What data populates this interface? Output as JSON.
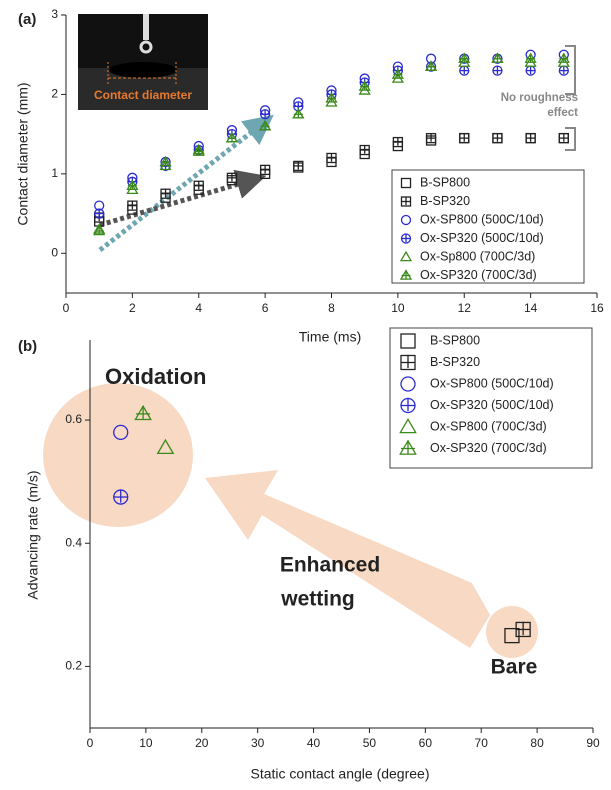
{
  "chart_data": [
    {
      "type": "scatter",
      "panel_label": "(a)",
      "x_label": "Time (ms)",
      "y_label": "Contact diameter (mm)",
      "xlim": [
        0,
        16
      ],
      "xticks": [
        0,
        2,
        4,
        6,
        8,
        10,
        12,
        14,
        16
      ],
      "ylim": [
        -0.5,
        3
      ],
      "yticks": [
        0,
        1,
        2,
        3
      ],
      "inset_label": "Contact diameter",
      "annotation": [
        "No roughness",
        "effect"
      ],
      "x": [
        1,
        2,
        3,
        4,
        5,
        6,
        7,
        8,
        9,
        10,
        11,
        12,
        13,
        14,
        15
      ],
      "series": [
        {
          "name": "B-SP800",
          "color": "#222222",
          "marker": "square",
          "values": [
            0.4,
            0.55,
            0.7,
            0.8,
            0.92,
            1.0,
            1.08,
            1.15,
            1.25,
            1.35,
            1.42,
            1.45,
            1.45,
            1.45,
            1.45
          ]
        },
        {
          "name": "B-SP320",
          "color": "#222222",
          "marker": "square-plus",
          "values": [
            0.45,
            0.6,
            0.75,
            0.85,
            0.95,
            1.05,
            1.1,
            1.2,
            1.3,
            1.4,
            1.45,
            1.45,
            1.45,
            1.45,
            1.45
          ]
        },
        {
          "name": "Ox-SP800 (500C/10d)",
          "color": "#2a2ad0",
          "marker": "circle",
          "values": [
            0.6,
            0.95,
            1.15,
            1.35,
            1.55,
            1.8,
            1.9,
            2.05,
            2.2,
            2.35,
            2.45,
            2.45,
            2.45,
            2.5,
            2.5
          ]
        },
        {
          "name": "Ox-SP320 (500C/10d)",
          "color": "#2a2ad0",
          "marker": "circle-plus",
          "values": [
            0.5,
            0.9,
            1.1,
            1.3,
            1.5,
            1.75,
            1.85,
            2.0,
            2.15,
            2.3,
            2.35,
            2.3,
            2.3,
            2.3,
            2.3
          ]
        },
        {
          "name": "Ox-Sp800 (700C/3d)",
          "color": "#3a8a1a",
          "marker": "triangle",
          "values": [
            0.3,
            0.8,
            1.1,
            1.3,
            1.45,
            1.6,
            1.75,
            1.9,
            2.05,
            2.2,
            2.35,
            2.4,
            2.45,
            2.4,
            2.4
          ]
        },
        {
          "name": "Ox-SP320 (700C/3d)",
          "color": "#3a8a1a",
          "marker": "triangle-plus",
          "values": [
            0.28,
            0.85,
            1.15,
            1.28,
            1.45,
            1.6,
            1.75,
            1.95,
            2.1,
            2.25,
            2.35,
            2.45,
            2.45,
            2.45,
            2.45
          ]
        }
      ]
    },
    {
      "type": "scatter",
      "panel_label": "(b)",
      "x_label": "Static contact angle (degree)",
      "y_label": "Advancing rate (m/s)",
      "xlim": [
        0,
        90
      ],
      "xticks": [
        0,
        10,
        20,
        30,
        40,
        50,
        60,
        70,
        80,
        90
      ],
      "ylim": [
        0.1,
        0.73
      ],
      "yticks": [
        0.2,
        0.4,
        0.6
      ],
      "annotations": [
        "Oxidation",
        "Enhanced",
        "wetting",
        "Bare"
      ],
      "series": [
        {
          "name": "B-SP800",
          "color": "#222222",
          "marker": "square",
          "x": [
            75.5
          ],
          "values": [
            0.25
          ]
        },
        {
          "name": "B-SP320",
          "color": "#222222",
          "marker": "square-plus",
          "x": [
            77.5
          ],
          "values": [
            0.26
          ]
        },
        {
          "name": "Ox-SP800 (500C/10d)",
          "color": "#2a2ad0",
          "marker": "circle",
          "x": [
            5.5
          ],
          "values": [
            0.58
          ]
        },
        {
          "name": "Ox-SP320 (500C/10d)",
          "color": "#2a2ad0",
          "marker": "circle-plus",
          "x": [
            5.5
          ],
          "values": [
            0.475
          ]
        },
        {
          "name": "Ox-SP800 (700C/3d)",
          "color": "#3a8a1a",
          "marker": "triangle",
          "x": [
            13.5
          ],
          "values": [
            0.555
          ]
        },
        {
          "name": "Ox-SP320 (700C/3d)",
          "color": "#3a8a1a",
          "marker": "triangle-plus",
          "x": [
            9.5
          ],
          "values": [
            0.61
          ]
        }
      ]
    }
  ]
}
